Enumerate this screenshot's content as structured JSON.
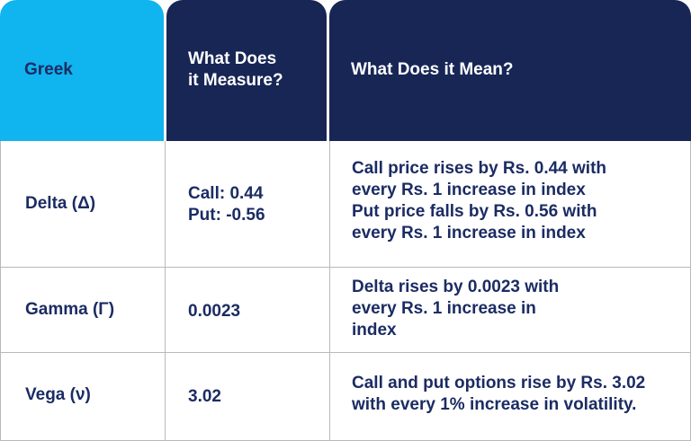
{
  "header": {
    "col1": "Greek",
    "col2_line1": "What Does",
    "col2_line2": "it Measure?",
    "col3": "What Does it Mean?"
  },
  "rows": [
    {
      "greek": "Delta (Δ)",
      "measure_lines": [
        "Call: 0.44",
        "Put: -0.56"
      ],
      "meaning_lines": [
        "Call price rises by Rs. 0.44 with",
        "every Rs. 1 increase in index",
        "Put price falls by Rs. 0.56 with",
        "every Rs. 1 increase in index"
      ]
    },
    {
      "greek": "Gamma (Γ)",
      "measure_lines": [
        "0.0023"
      ],
      "meaning_lines": [
        "Delta rises by 0.0023 with",
        "every Rs. 1 increase in",
        "index"
      ]
    },
    {
      "greek": "Vega (ν)",
      "measure_lines": [
        "3.02"
      ],
      "meaning_lines": [
        "Call and put options rise by Rs. 3.02",
        "with every 1% increase in volatility."
      ]
    }
  ],
  "colors": {
    "header_greek_bg": "#10b4ef",
    "header_dark_bg": "#172655",
    "text_dark": "#1b2c63",
    "border": "#b9b9b9"
  }
}
